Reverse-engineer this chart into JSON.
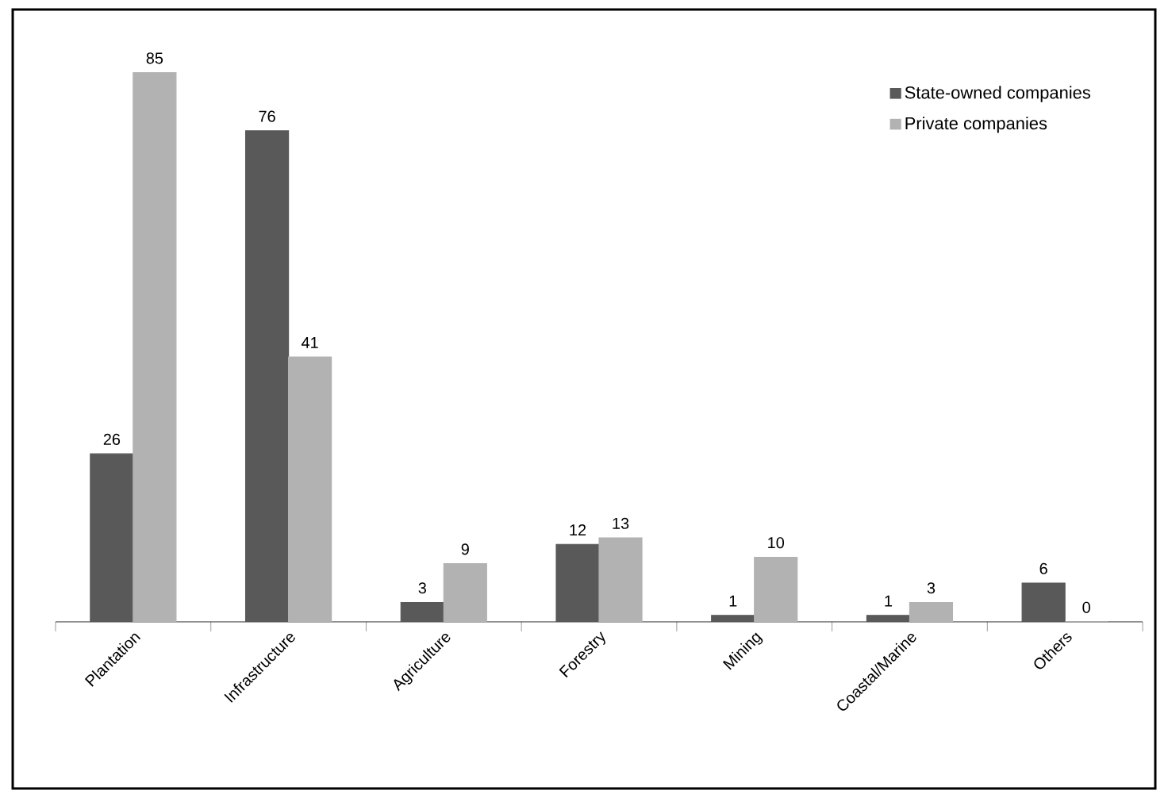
{
  "chart_data": {
    "type": "bar",
    "categories": [
      "Plantation",
      "Infrastructure",
      "Agriculture",
      "Forestry",
      "Mining",
      "Coastal/Marine",
      "Others"
    ],
    "series": [
      {
        "name": "State-owned companies",
        "color": "#595959",
        "values": [
          26,
          76,
          3,
          12,
          1,
          1,
          6
        ]
      },
      {
        "name": "Private companies",
        "color": "#b2b2b2",
        "values": [
          85,
          41,
          9,
          13,
          10,
          3,
          0
        ]
      }
    ],
    "data_labels": true,
    "legend": "top right"
  }
}
